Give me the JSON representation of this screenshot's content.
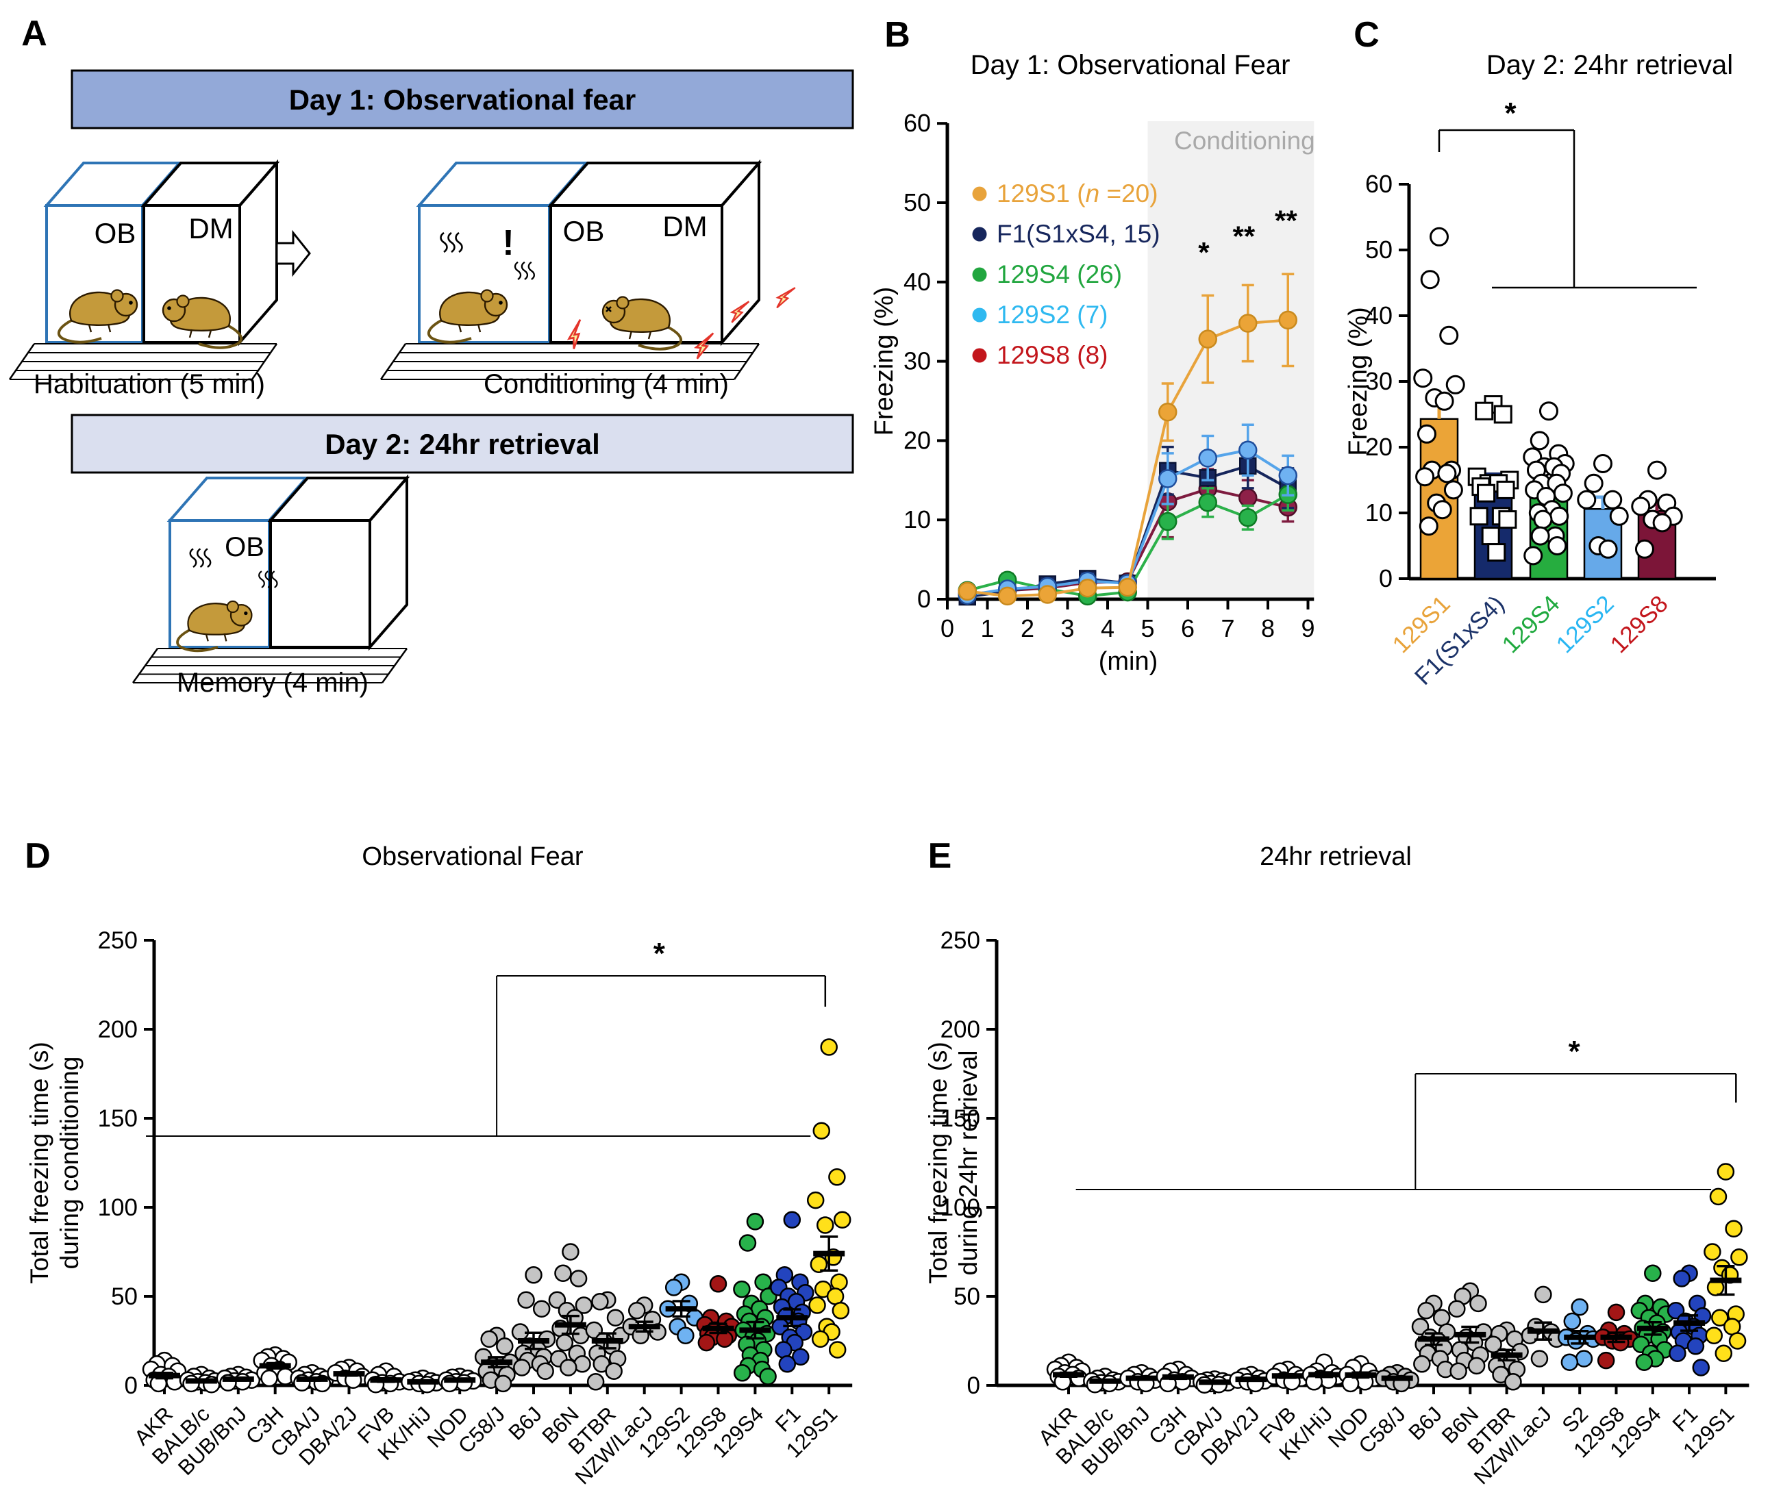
{
  "panel_a": {
    "label": "A",
    "banners": [
      {
        "text": "Day 1: Observational fear",
        "fill": "#93A9D8"
      },
      {
        "text": "Day 2: 24hr retrieval",
        "fill": "#DADFEF"
      }
    ],
    "box_labels": {
      "observer": "OB",
      "demonstrator": "DM"
    },
    "captions": {
      "habituation": "Habituation (5 min)",
      "conditioning": "Conditioning (4 min)",
      "memory": "Memory (4 min)"
    },
    "exclaim": "!",
    "colors": {
      "observer_box": "#2E74B5",
      "demonstrator_box": "#000000",
      "mouse": "#C49A3B",
      "bolt_fill": "#FBF0A0",
      "bolt_stroke": "#E4342B"
    }
  },
  "chart_data": [
    {
      "id": "B",
      "panel_label": "B",
      "type": "line",
      "title": "Day 1: Observational Fear",
      "xlabel": "(min)",
      "ylabel": "Freezing (%)",
      "xlim": [
        0,
        9.15
      ],
      "ylim": [
        0,
        60
      ],
      "xticks": [
        0,
        1,
        2,
        3,
        4,
        5,
        6,
        7,
        8,
        9
      ],
      "yticks": [
        0,
        10,
        20,
        30,
        40,
        50,
        60
      ],
      "shade": {
        "x0": 5,
        "x1": 9.15,
        "label": "Conditioning",
        "fill": "#F1F1F1",
        "label_color": "#A9A9A9"
      },
      "x": [
        0.5,
        1.5,
        2.5,
        3.5,
        4.5,
        5.5,
        6.5,
        7.5,
        8.5
      ],
      "series": [
        {
          "name": "129S8",
          "legend_parts": [
            {
              "t": "129S8 (8)"
            }
          ],
          "legend_color": "#C3161C",
          "line": "#7E1B3F",
          "fill": "#8E2048",
          "stroke": "#4F0E27",
          "marker": "circle",
          "values": [
            0.6,
            1.1,
            1.4,
            2.1,
            2.2,
            12.3,
            13.9,
            12.8,
            11.6
          ],
          "errors": [
            0.4,
            0.5,
            0.6,
            0.8,
            0.8,
            4.5,
            2.5,
            2.2,
            1.8
          ]
        },
        {
          "name": "F1(S1xS4)",
          "legend_parts": [
            {
              "t": "F1(S1xS4, 15)"
            }
          ],
          "legend_color": "#16265C",
          "line": "#16265C",
          "fill": "#16265C",
          "stroke": "#0A1335",
          "marker": "square",
          "values": [
            0.3,
            1.0,
            1.9,
            2.6,
            2.0,
            16.2,
            15.3,
            16.8,
            14.0
          ],
          "errors": [
            0.3,
            0.4,
            0.6,
            0.7,
            0.6,
            3.0,
            2.2,
            2.8,
            2.5
          ]
        },
        {
          "name": "129S4",
          "legend_parts": [
            {
              "t": "129S4 (26)"
            }
          ],
          "legend_color": "#21A63F",
          "line": "#2CB14A",
          "fill": "#28B24B",
          "stroke": "#0E7A24",
          "marker": "circle",
          "values": [
            1.1,
            2.4,
            1.3,
            0.4,
            0.9,
            9.8,
            12.2,
            10.3,
            13.2
          ],
          "errors": [
            0.4,
            0.8,
            0.5,
            0.3,
            0.4,
            2.2,
            1.8,
            1.5,
            2.0
          ]
        },
        {
          "name": "129S2",
          "legend_parts": [
            {
              "t": "129S2 (7)"
            }
          ],
          "legend_color": "#2FB9F0",
          "line": "#55A4EA",
          "fill": "#6FB2F2",
          "stroke": "#1F4E9C",
          "marker": "circle",
          "values": [
            0.5,
            1.3,
            1.6,
            2.3,
            2.0,
            15.2,
            17.8,
            18.8,
            15.6
          ],
          "errors": [
            0.4,
            0.6,
            0.6,
            0.8,
            0.7,
            3.2,
            2.8,
            3.2,
            2.5
          ]
        },
        {
          "name": "129S1",
          "legend_parts": [
            {
              "t": "129S1 ("
            },
            {
              "t": "n",
              "italic": true
            },
            {
              "t": " =20)"
            }
          ],
          "legend_color": "#E8A33B",
          "line": "#E8A33B",
          "fill": "#EBA437",
          "stroke": "#C98A1E",
          "marker": "circle",
          "values": [
            1.0,
            0.4,
            0.6,
            1.4,
            1.5,
            23.6,
            32.8,
            34.8,
            35.2
          ],
          "errors": [
            0.5,
            0.4,
            0.4,
            0.6,
            0.6,
            3.6,
            5.5,
            4.8,
            5.8
          ]
        }
      ],
      "legend_order": [
        "129S1",
        "F1(S1xS4)",
        "129S4",
        "129S2",
        "129S8"
      ],
      "sig_labels": [
        {
          "x": 6.4,
          "y": 42.5,
          "text": "*"
        },
        {
          "x": 7.4,
          "y": 44.5,
          "text": "**"
        },
        {
          "x": 8.45,
          "y": 46.5,
          "text": "**"
        }
      ]
    },
    {
      "id": "C",
      "panel_label": "C",
      "type": "bar",
      "title": "Day 2: 24hr retrieval",
      "ylabel": "Freezing (%)",
      "ylim": [
        0,
        60
      ],
      "yticks": [
        0,
        10,
        20,
        30,
        40,
        50,
        60
      ],
      "categories": [
        "129S1",
        "F1(S1xS4)",
        "129S4",
        "129S2",
        "129S8"
      ],
      "bar_fill": [
        "#EBA437",
        "#152A6B",
        "#26AD3F",
        "#66A9E9",
        "#7C1538"
      ],
      "tick_colors": [
        "#E8A33B",
        "#1B3268",
        "#1FA93E",
        "#29B6F2",
        "#C3161C"
      ],
      "values": [
        24.3,
        14.0,
        13.2,
        10.6,
        10.3
      ],
      "errors": [
        3.2,
        1.9,
        1.3,
        1.8,
        1.5
      ],
      "marker": [
        "circle",
        "square",
        "circle",
        "circle",
        "circle"
      ],
      "points": [
        [
          52,
          45.5,
          37,
          30.5,
          29.5,
          27.5,
          27,
          22,
          16.5,
          16.5,
          16,
          15.5,
          13.5,
          11.5,
          10.5,
          8
        ],
        [
          26.5,
          25.5,
          25,
          15.5,
          15,
          14.5,
          14.5,
          14,
          13.5,
          13,
          9.5,
          9.5,
          9,
          6.5,
          4
        ],
        [
          25.5,
          21,
          19,
          18.5,
          17.5,
          17,
          17,
          16.5,
          16,
          14.5,
          14.5,
          13.5,
          13,
          12.5,
          10.5,
          10,
          9.5,
          9,
          6.5,
          6.5,
          5,
          3.5
        ],
        [
          17.5,
          14.5,
          12,
          12,
          9.5,
          5,
          4.5
        ],
        [
          16.5,
          12,
          11.5,
          11,
          9.5,
          9,
          8.5,
          4.5
        ]
      ],
      "sig": {
        "text": "*"
      }
    },
    {
      "id": "D",
      "panel_label": "D",
      "type": "scatter",
      "title": "Observational Fear",
      "ylabel_lines": [
        "Total freezing time (s)",
        "during conditioning"
      ],
      "ylim": [
        0,
        250
      ],
      "yticks": [
        0,
        50,
        100,
        150,
        200,
        250
      ],
      "categories": [
        "AKR",
        "BALB/c",
        "BUB/BnJ",
        "C3H",
        "CBA/J",
        "DBA/2J",
        "FVB",
        "KK/HiJ",
        "NOD",
        "C58/J",
        "B6J",
        "B6N",
        "BTBR",
        "NZW/LacJ",
        "129S2",
        "129S8",
        "129S4",
        "F1",
        "129S1"
      ],
      "fills": [
        "#FFFFFF",
        "#FFFFFF",
        "#FFFFFF",
        "#FFFFFF",
        "#FFFFFF",
        "#FFFFFF",
        "#FFFFFF",
        "#FFFFFF",
        "#FFFFFF",
        "#C4C4C4",
        "#C4C4C4",
        "#C4C4C4",
        "#C4C4C4",
        "#C4C4C4",
        "#6FB2F2",
        "#A31616",
        "#28B24B",
        "#2344BE",
        "#FFE01A"
      ],
      "points": [
        [
          14,
          12,
          11,
          9,
          8,
          6,
          5,
          3,
          2,
          1
        ],
        [
          6,
          5,
          4,
          3,
          2.5,
          2,
          1.5,
          1,
          0.5
        ],
        [
          6,
          5,
          4.5,
          4,
          3,
          2.5,
          2,
          1.5
        ],
        [
          17,
          16,
          15,
          14,
          13,
          11,
          9,
          7,
          5,
          4
        ],
        [
          7,
          6,
          5,
          4,
          3.5,
          3,
          2,
          1.5,
          1
        ],
        [
          10,
          9,
          8,
          7,
          5,
          4,
          3
        ],
        [
          8,
          6,
          5,
          3,
          2,
          1.5,
          1,
          0.5
        ],
        [
          4,
          3,
          2.5,
          2,
          1.5,
          1,
          0.5
        ],
        [
          5,
          4.5,
          4,
          3,
          2.5,
          2,
          1.5,
          1
        ],
        [
          28,
          26,
          22,
          16,
          13,
          11,
          10,
          8,
          6,
          3,
          1
        ],
        [
          62,
          48,
          43,
          30,
          26,
          22,
          20,
          18,
          16,
          14,
          12,
          10,
          8
        ],
        [
          75,
          63,
          60,
          48,
          45,
          42,
          38,
          32,
          28,
          24,
          18,
          15,
          12,
          10
        ],
        [
          48,
          47,
          38,
          31,
          28,
          25,
          22,
          18,
          15,
          12,
          8,
          2
        ],
        [
          45,
          42,
          37,
          33,
          30,
          28
        ],
        [
          58,
          55,
          46,
          43,
          38,
          33,
          28
        ],
        [
          57,
          38,
          36,
          34,
          33,
          31,
          30,
          29,
          28,
          27,
          26,
          24
        ],
        [
          92,
          80,
          58,
          54,
          50,
          46,
          43,
          40,
          38,
          36,
          33,
          31,
          29,
          27,
          25,
          23,
          20,
          17,
          14,
          11,
          9,
          7,
          5
        ],
        [
          93,
          62,
          58,
          55,
          52,
          50,
          47,
          44,
          41,
          39,
          36,
          33,
          30,
          27,
          24,
          20,
          16,
          12
        ],
        [
          190,
          143,
          117,
          104,
          93,
          90,
          72,
          68,
          58,
          54,
          50,
          45,
          42,
          33,
          30,
          26,
          20
        ]
      ],
      "means": [
        5.5,
        2.5,
        3.5,
        11,
        3.5,
        6.5,
        3,
        2,
        3,
        13,
        25,
        34,
        25,
        33,
        43,
        32,
        31,
        38,
        74
      ],
      "sems": [
        1.5,
        0.7,
        0.8,
        1.5,
        0.8,
        1.0,
        1.0,
        0.5,
        0.6,
        2.8,
        4.5,
        5.0,
        4.2,
        2.7,
        4.3,
        2.6,
        4.6,
        4.7,
        9.5
      ],
      "sig": {
        "text": "*",
        "low_y": 140,
        "high_y": 230,
        "low_span": [
          -0.5,
          17.5
        ],
        "riser_at": 9,
        "high_span": [
          9,
          17.9
        ],
        "tick_drop": 45,
        "star_at": 13.4
      }
    },
    {
      "id": "E",
      "panel_label": "E",
      "type": "scatter",
      "title": "24hr retrieval",
      "ylabel_lines": [
        "Total freezing time (s)",
        "during 24hr retrieval"
      ],
      "ylim": [
        0,
        250
      ],
      "yticks": [
        0,
        50,
        100,
        150,
        200,
        250
      ],
      "categories": [
        "AKR",
        "BALB/c",
        "BUB/BnJ",
        "C3H",
        "CBA/J",
        "DBA/2J",
        "FVB",
        "KK/HiJ",
        "NOD",
        "C58/J",
        "B6J",
        "B6N",
        "BTBR",
        "NZW/LacJ",
        "S2",
        "129S8",
        "129S4",
        "F1",
        "129S1"
      ],
      "fills": [
        "#FFFFFF",
        "#FFFFFF",
        "#FFFFFF",
        "#FFFFFF",
        "#FFFFFF",
        "#FFFFFF",
        "#FFFFFF",
        "#FFFFFF",
        "#FFFFFF",
        "#C4C4C4",
        "#C4C4C4",
        "#C4C4C4",
        "#C4C4C4",
        "#C4C4C4",
        "#6FB2F2",
        "#A31616",
        "#28B24B",
        "#2344BE",
        "#FFE01A"
      ],
      "points": [
        [
          13,
          11,
          10,
          9,
          8,
          7,
          6,
          5,
          4,
          2
        ],
        [
          5,
          4,
          3,
          2.5,
          2,
          1.5,
          1,
          0.5
        ],
        [
          7,
          6,
          5,
          4,
          3,
          2,
          1
        ],
        [
          9,
          8,
          6,
          5,
          4,
          3,
          2,
          1
        ],
        [
          3.5,
          3,
          2.5,
          2,
          1.5,
          1,
          0.5,
          0.3
        ],
        [
          6,
          5,
          4,
          3,
          2.5,
          2,
          1
        ],
        [
          9,
          8,
          6,
          5,
          4,
          3,
          2
        ],
        [
          13,
          8,
          7,
          6,
          5,
          4,
          3,
          2
        ],
        [
          12,
          10,
          8,
          6,
          4,
          3,
          2,
          1
        ],
        [
          7,
          6,
          5,
          4,
          3,
          2,
          1
        ],
        [
          46,
          42,
          38,
          33,
          30,
          27,
          25,
          23,
          21,
          18,
          15,
          12,
          9
        ],
        [
          53,
          50,
          46,
          43,
          30,
          27,
          24,
          20,
          17,
          14,
          11,
          8
        ],
        [
          31,
          29,
          26,
          23,
          19,
          16,
          13,
          11,
          9,
          6,
          2
        ],
        [
          51,
          33,
          30,
          28,
          26,
          15
        ],
        [
          44,
          36,
          29,
          27,
          26,
          25,
          15,
          13
        ],
        [
          41,
          31,
          29,
          27,
          26,
          25,
          24,
          14
        ],
        [
          63,
          46,
          44,
          42,
          40,
          38,
          35,
          32,
          30,
          28,
          26,
          23,
          20,
          18,
          15,
          13
        ],
        [
          63,
          60,
          46,
          42,
          39,
          36,
          33,
          30,
          28,
          25,
          22,
          18,
          10
        ],
        [
          120,
          106,
          88,
          75,
          72,
          66,
          62,
          55,
          40,
          38,
          33,
          28,
          25,
          18
        ]
      ],
      "means": [
        6,
        2.4,
        4,
        4.7,
        1.8,
        3.4,
        5.3,
        6,
        5.8,
        4,
        26,
        28.5,
        17,
        30.5,
        27,
        27,
        32,
        35,
        59
      ],
      "sems": [
        1.1,
        0.6,
        0.8,
        1.0,
        0.4,
        0.7,
        1.0,
        1.3,
        1.4,
        0.8,
        3.2,
        4.4,
        2.9,
        4.8,
        3.5,
        2.6,
        3.5,
        4.3,
        8.0
      ],
      "sig": {
        "text": "*",
        "low_y": 110,
        "high_y": 175,
        "low_span": [
          0.2,
          17.6
        ],
        "riser_at": 9.5,
        "high_span": [
          9.5,
          18.28
        ],
        "tick_drop": 42,
        "star_at": 13.85
      }
    }
  ]
}
